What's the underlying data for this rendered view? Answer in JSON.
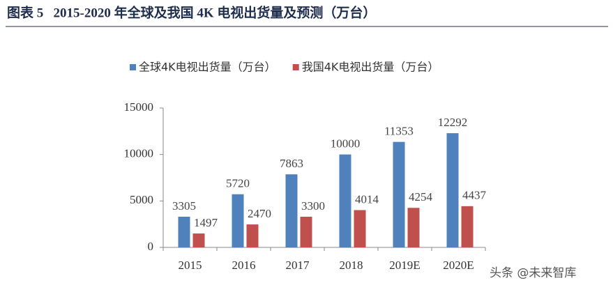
{
  "chart_data": {
    "type": "bar",
    "title": "图表 5   2015-2020 年全球及我国 4K 电视出货量及预测（万台）",
    "categories": [
      "2015",
      "2016",
      "2017",
      "2018",
      "2019E",
      "2020E"
    ],
    "series": [
      {
        "name": "全球4K电视出货量（万台）",
        "color": "#4f81bd",
        "values": [
          3305,
          5720,
          7863,
          10000,
          11353,
          12292
        ]
      },
      {
        "name": "我国4K电视出货量（万台）",
        "color": "#c0504d",
        "values": [
          1497,
          2470,
          3300,
          4014,
          4254,
          4437
        ]
      }
    ],
    "ylim": [
      0,
      15000
    ],
    "yticks": [
      0,
      5000,
      10000,
      15000
    ],
    "grid": false,
    "legend": "top"
  },
  "watermark": "头条 @未来智库"
}
